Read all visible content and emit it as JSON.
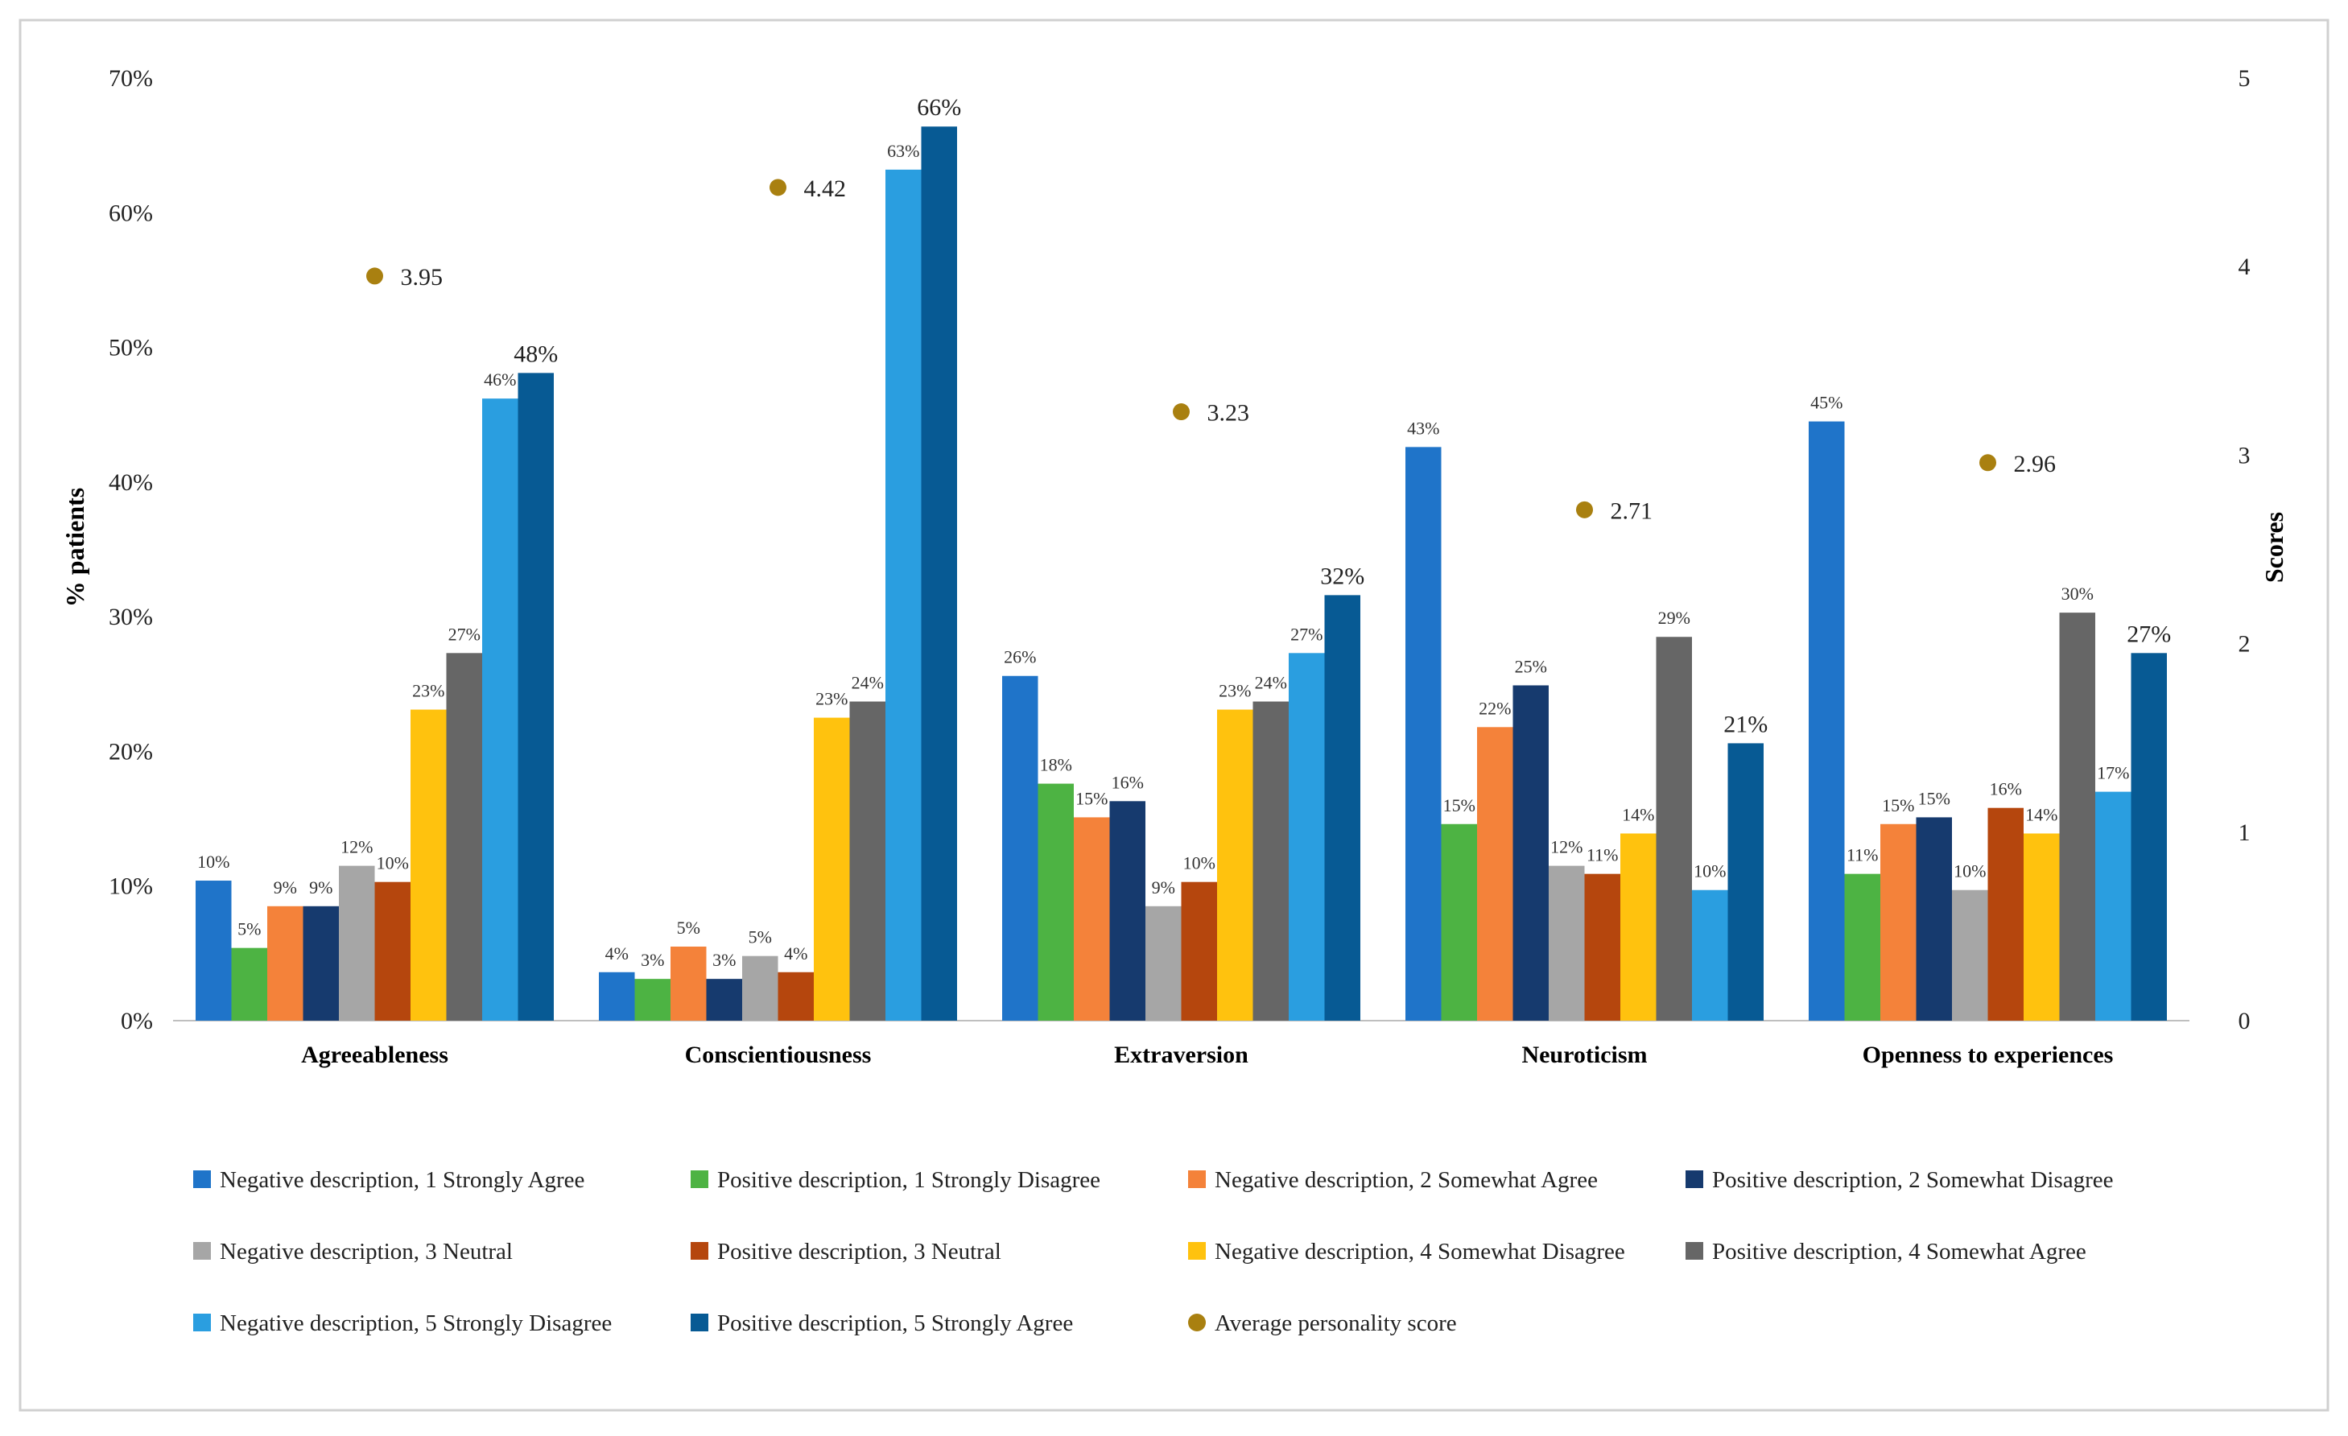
{
  "chart_data": {
    "type": "bar",
    "title": "",
    "ylabel": "% patients",
    "y2label": "Scores",
    "ylim": [
      0,
      70
    ],
    "y2lim": [
      0,
      5
    ],
    "ytick_labels": [
      "0%",
      "10%",
      "20%",
      "30%",
      "40%",
      "50%",
      "60%",
      "70%"
    ],
    "ytick_values": [
      0,
      10,
      20,
      30,
      40,
      50,
      60,
      70
    ],
    "y2tick_labels": [
      "0",
      "1",
      "2",
      "3",
      "4",
      "5"
    ],
    "y2tick_values": [
      0,
      1,
      2,
      3,
      4,
      5
    ],
    "categories": [
      "Agreeableness",
      "Conscientiousness",
      "Extraversion",
      "Neuroticism",
      "Openness to experiences"
    ],
    "series": [
      {
        "name": "Negative description, 1 Strongly Agree",
        "color": "#1f74c9",
        "values": [
          10.4,
          3.6,
          25.6,
          42.6,
          44.5
        ],
        "labels": [
          "10%",
          "4%",
          "26%",
          "43%",
          "45%"
        ]
      },
      {
        "name": "Positive description, 1 Strongly Disagree",
        "color": "#4db343",
        "values": [
          5.4,
          3.1,
          17.6,
          14.6,
          10.9
        ],
        "labels": [
          "5%",
          "3%",
          "18%",
          "15%",
          "11%"
        ]
      },
      {
        "name": "Negative description, 2 Somewhat Agree",
        "color": "#f4823a",
        "values": [
          8.5,
          5.5,
          15.1,
          21.8,
          14.6
        ],
        "labels": [
          "9%",
          "5%",
          "15%",
          "22%",
          "15%"
        ]
      },
      {
        "name": "Positive description, 2 Somewhat Disagree",
        "color": "#163a6e",
        "values": [
          8.5,
          3.1,
          16.3,
          24.9,
          15.1
        ],
        "labels": [
          "9%",
          "3%",
          "16%",
          "25%",
          "15%"
        ]
      },
      {
        "name": "Negative description, 3 Neutral",
        "color": "#a6a6a6",
        "values": [
          11.5,
          4.8,
          8.5,
          11.5,
          9.7
        ],
        "labels": [
          "12%",
          "5%",
          "9%",
          "12%",
          "10%"
        ]
      },
      {
        "name": "Positive description, 3 Neutral",
        "color": "#b5460d",
        "values": [
          10.3,
          3.6,
          10.3,
          10.9,
          15.8
        ],
        "labels": [
          "10%",
          "4%",
          "10%",
          "11%",
          "16%"
        ]
      },
      {
        "name": "Negative description, 4 Somewhat Disagree",
        "color": "#ffc20e",
        "values": [
          23.1,
          22.5,
          23.1,
          13.9,
          13.9
        ],
        "labels": [
          "23%",
          "23%",
          "23%",
          "14%",
          "14%"
        ]
      },
      {
        "name": "Positive description, 4 Somewhat Agree",
        "color": "#666666",
        "values": [
          27.3,
          23.7,
          23.7,
          28.5,
          30.3
        ],
        "labels": [
          "27%",
          "24%",
          "24%",
          "29%",
          "30%"
        ]
      },
      {
        "name": "Negative description, 5 Strongly Disagree",
        "color": "#2a9ee0",
        "values": [
          46.2,
          63.2,
          27.3,
          9.7,
          17.0
        ],
        "labels": [
          "46%",
          "63%",
          "27%",
          "10%",
          "17%"
        ]
      },
      {
        "name": "Positive description, 5 Strongly Agree",
        "color": "#075a94",
        "values": [
          48.1,
          66.4,
          31.6,
          20.6,
          27.3
        ],
        "labels": [
          "48%",
          "66%",
          "32%",
          "21%",
          "27%"
        ]
      }
    ],
    "average": {
      "name": "Average personality score",
      "color": "#a98010",
      "axis": "right",
      "values": [
        3.95,
        4.42,
        3.23,
        2.71,
        2.96
      ],
      "labels": [
        "3.95",
        "4.42",
        "3.23",
        "2.71",
        "2.96"
      ]
    },
    "legend_position": "bottom"
  }
}
